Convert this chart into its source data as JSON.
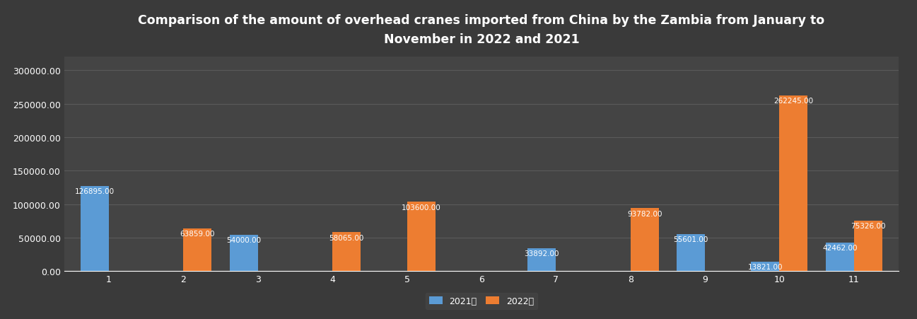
{
  "title": "Comparison of the amount of overhead cranes imported from China by the Zambia from January to\nNovember in 2022 and 2021",
  "months": [
    1,
    2,
    3,
    4,
    5,
    6,
    7,
    8,
    9,
    10,
    11
  ],
  "values_2021": [
    126895,
    0,
    54000,
    0,
    0,
    0,
    33892,
    0,
    55601,
    13821,
    42462
  ],
  "values_2022": [
    0,
    63859,
    0,
    58065,
    103600,
    0,
    0,
    93782,
    0,
    262245,
    75326
  ],
  "color_2021": "#5B9BD5",
  "color_2022": "#ED7D31",
  "bg_color": "#3a3a3a",
  "plot_bg_color": "#444444",
  "text_color": "#ffffff",
  "grid_color": "#5a5a5a",
  "legend_2021": "2021年",
  "legend_2022": "2022年",
  "ylim": [
    0,
    320000
  ],
  "yticks": [
    0,
    50000,
    100000,
    150000,
    200000,
    250000,
    300000
  ],
  "bar_width": 0.38,
  "title_fontsize": 12.5,
  "label_fontsize": 7.5,
  "tick_fontsize": 9,
  "legend_fontsize": 9
}
